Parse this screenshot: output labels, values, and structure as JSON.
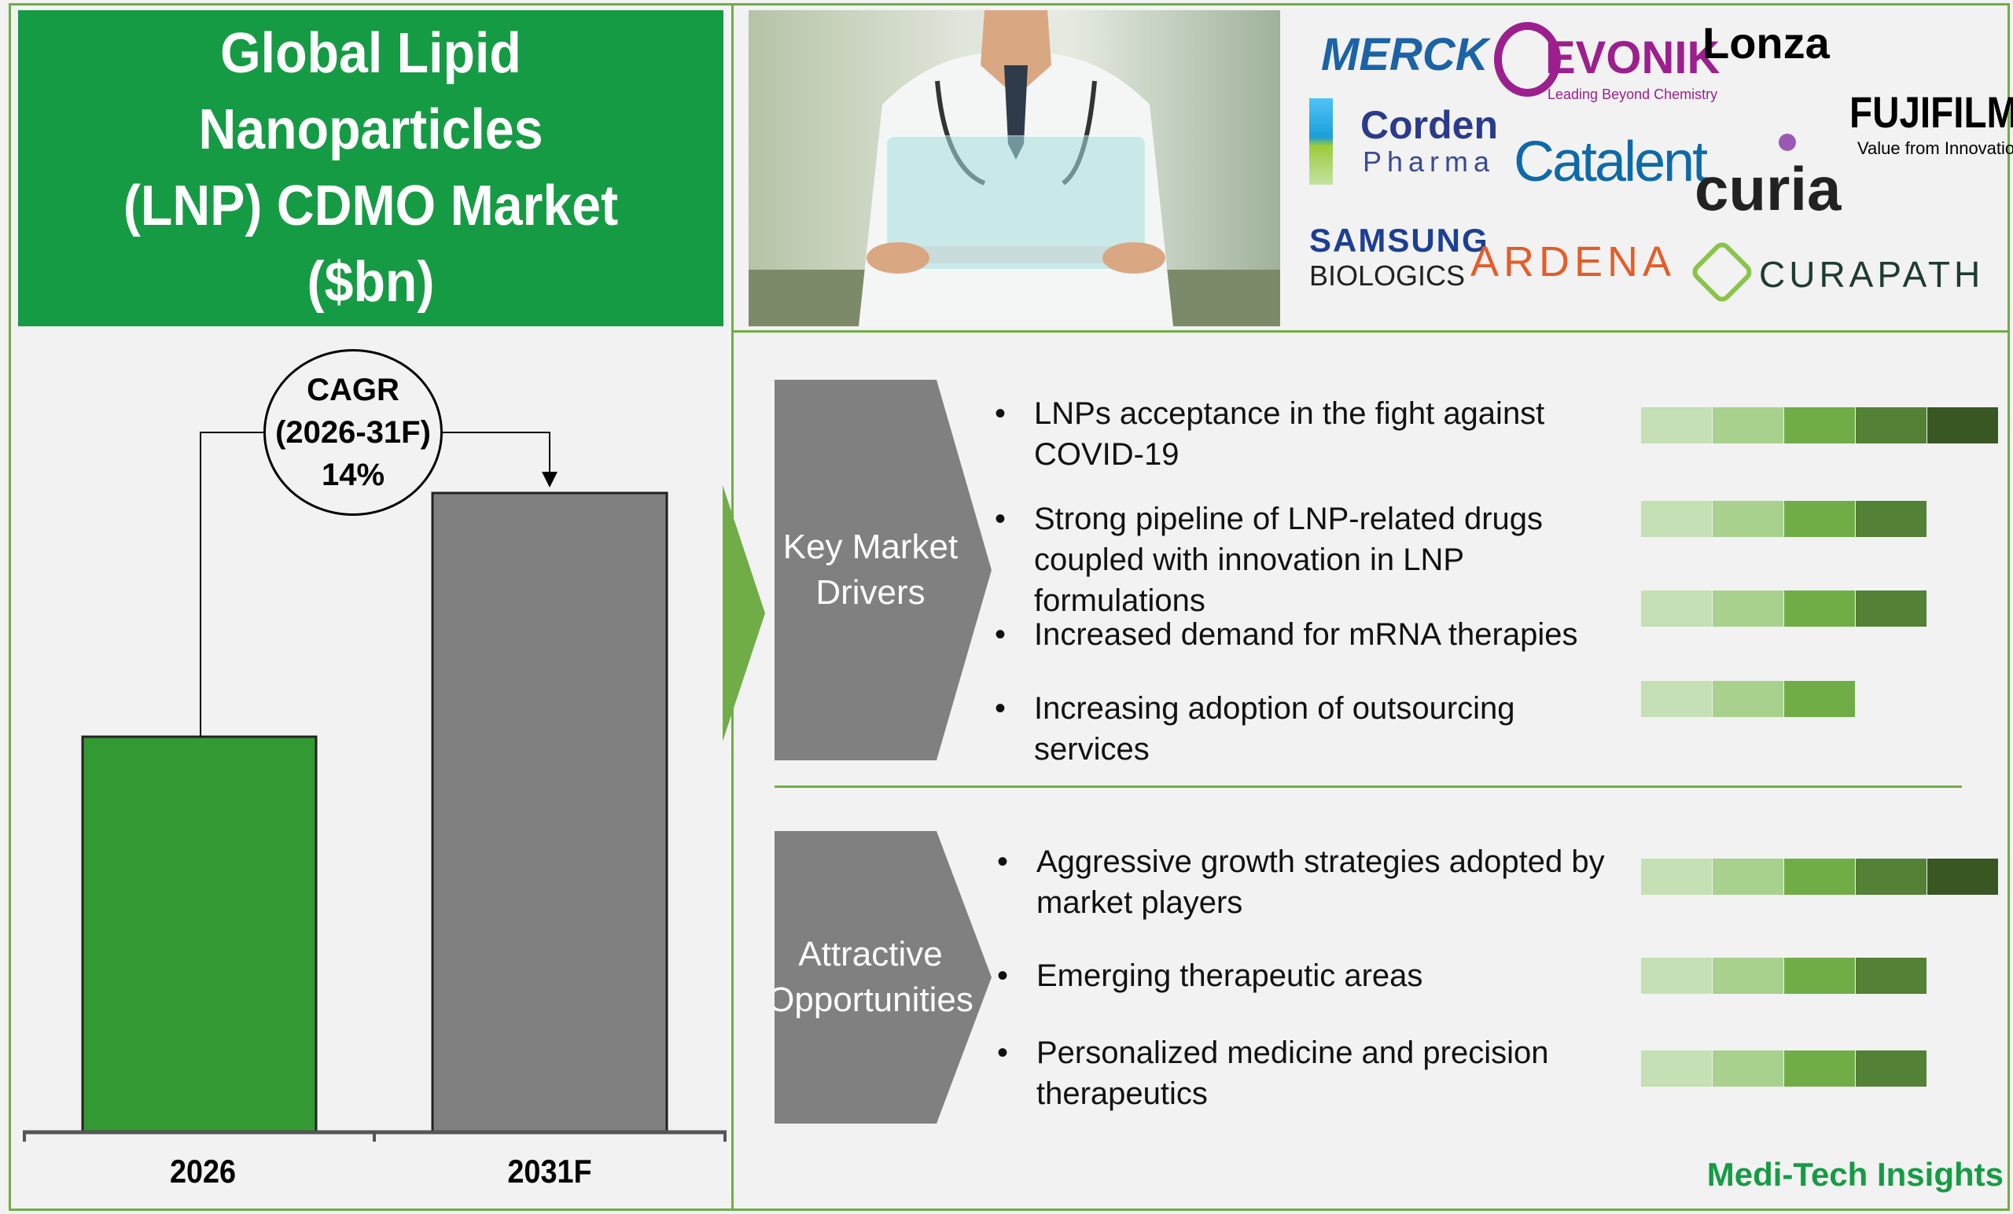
{
  "title": "Global Lipid Nanoparticles (LNP) CDMO Market ($bn)",
  "title_lines": [
    "Global Lipid Nanoparticles",
    "(LNP) CDMO Market",
    "($bn)"
  ],
  "chart_data": {
    "type": "bar",
    "categories": [
      "2026",
      "2031F"
    ],
    "colors": [
      "#339933",
      "#808080"
    ],
    "cagr": {
      "label": "CAGR",
      "period": "(2026-31F)",
      "value": "14%"
    }
  },
  "logos": [
    "MERCK",
    "EVONIK",
    "Leading Beyond Chemistry",
    "Lonza",
    "Corden",
    "Pharma",
    "Catalent",
    "FUJIFILM",
    "Value from Innovation",
    "curia",
    "SAMSUNG",
    "BIOLOGICS",
    "ARDENA",
    "CURAPATH"
  ],
  "drivers": {
    "label": "Key Market Drivers",
    "items": [
      {
        "text": "LNPs acceptance in the fight against COVID-19",
        "level": 5
      },
      {
        "text": "Strong pipeline of LNP-related drugs coupled with innovation in LNP formulations",
        "level": 4
      },
      {
        "text": "Increased demand for mRNA therapies",
        "level": 4
      },
      {
        "text": "Increasing adoption of outsourcing services",
        "level": 3
      }
    ]
  },
  "opportunities": {
    "label": "Attractive Opportunities",
    "items": [
      {
        "text": "Aggressive growth strategies adopted by market players",
        "level": 5
      },
      {
        "text": "Emerging therapeutic areas",
        "level": 4
      },
      {
        "text": "Personalized medicine and precision therapeutics",
        "level": 4
      }
    ]
  },
  "level_colors": [
    "#c5e0b4",
    "#a9d18e",
    "#70ad47",
    "#538135",
    "#385723"
  ],
  "brand": "Medi-Tech Insights"
}
